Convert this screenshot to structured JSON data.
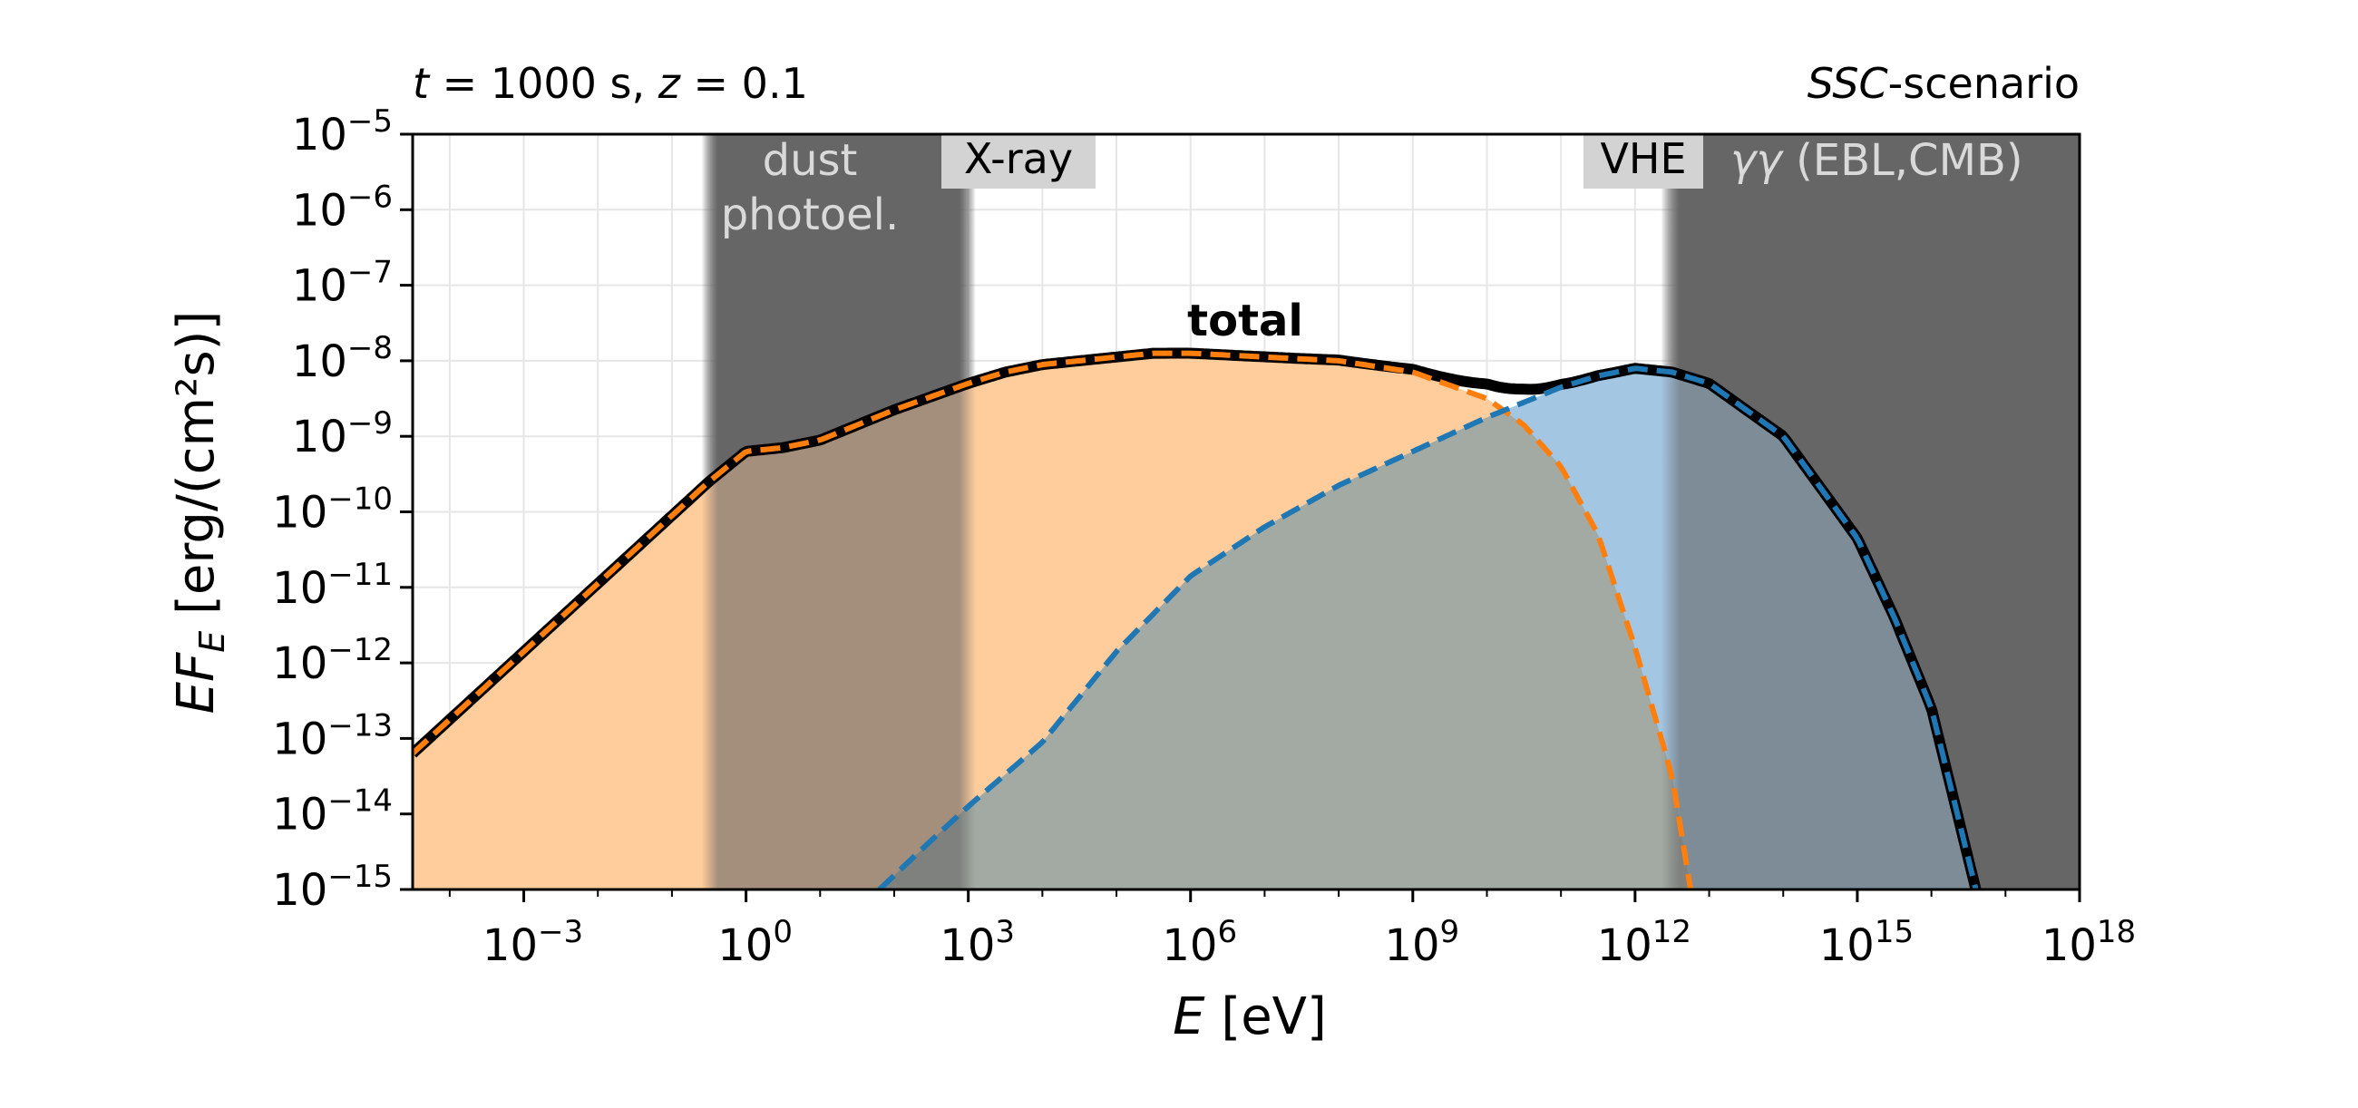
{
  "header": {
    "left_t": "t",
    "left_mid": " = 1000 s, ",
    "left_z": "z",
    "left_end": " = 0.1",
    "right_italic": "SSC",
    "right_rest": "-scenario"
  },
  "bands": {
    "dust": {
      "line1": "dust",
      "line2": "photoel."
    },
    "xray": {
      "label": "X-ray"
    },
    "vhe": {
      "label": "VHE"
    },
    "gg": {
      "prefix": "γγ",
      "rest": " (EBL,CMB)"
    }
  },
  "colors": {
    "orange_fill": "#ffcc9c",
    "orange_line": "#ff7f0e",
    "blue_fill": "#a3c6e3",
    "blue_line": "#1f77b4",
    "overlap_fill": "#a3aaa3",
    "band_dark": "#666666",
    "label_box": "#d3d3d3"
  },
  "chart_data": {
    "type": "area",
    "title": "",
    "xlabel": "E [eV]",
    "ylabel": "EF_E [erg/(cm²s)]",
    "xscale": "log",
    "yscale": "log",
    "xlim_log10": [
      -4.5,
      18
    ],
    "ylim_log10": [
      -15,
      -5
    ],
    "x_ticks": [
      {
        "base": "10",
        "exp": "−3",
        "log10": -3
      },
      {
        "base": "10",
        "exp": "0",
        "log10": 0
      },
      {
        "base": "10",
        "exp": "3",
        "log10": 3
      },
      {
        "base": "10",
        "exp": "6",
        "log10": 6
      },
      {
        "base": "10",
        "exp": "9",
        "log10": 9
      },
      {
        "base": "10",
        "exp": "12",
        "log10": 12
      },
      {
        "base": "10",
        "exp": "15",
        "log10": 15
      },
      {
        "base": "10",
        "exp": "18",
        "log10": 18
      }
    ],
    "y_ticks": [
      {
        "base": "10",
        "exp": "−5",
        "log10": -5
      },
      {
        "base": "10",
        "exp": "−6",
        "log10": -6
      },
      {
        "base": "10",
        "exp": "−7",
        "log10": -7
      },
      {
        "base": "10",
        "exp": "−8",
        "log10": -8
      },
      {
        "base": "10",
        "exp": "−9",
        "log10": -9
      },
      {
        "base": "10",
        "exp": "−10",
        "log10": -10
      },
      {
        "base": "10",
        "exp": "−11",
        "log10": -11
      },
      {
        "base": "10",
        "exp": "−12",
        "log10": -12
      },
      {
        "base": "10",
        "exp": "−13",
        "log10": -13
      },
      {
        "base": "10",
        "exp": "−14",
        "log10": -14
      },
      {
        "base": "10",
        "exp": "−15",
        "log10": -15
      }
    ],
    "grid": true,
    "regions": [
      {
        "name": "dust photoel.",
        "from_log10": -0.6,
        "to_log10": 3.1,
        "style": "dark"
      },
      {
        "name": "X-ray",
        "from_log10": 3.1,
        "to_log10": 12.35,
        "style": "clear"
      },
      {
        "name": "γγ (EBL,CMB)",
        "from_log10": 12.35,
        "to_log10": 18,
        "style": "dark"
      }
    ],
    "annotation": "total",
    "series": [
      {
        "id": "synchrotron",
        "log10_x": [
          -4.5,
          -3.5,
          -2.5,
          -1.5,
          -1,
          -0.5,
          0,
          0.5,
          1,
          2,
          3,
          3.5,
          4,
          5,
          5.5,
          6,
          7,
          8,
          9,
          10,
          10.5,
          11,
          11.5,
          12,
          12.5,
          12.75
        ],
        "log10_y": [
          -13.2,
          -12.3,
          -11.4,
          -10.5,
          -10.05,
          -9.6,
          -9.2,
          -9.15,
          -9.05,
          -8.65,
          -8.3,
          -8.15,
          -8.05,
          -7.95,
          -7.9,
          -7.9,
          -7.95,
          -8.0,
          -8.15,
          -8.5,
          -8.85,
          -9.4,
          -10.3,
          -11.8,
          -13.5,
          -15.0
        ]
      },
      {
        "id": "ssc",
        "log10_x": [
          1.8,
          2.5,
          3,
          4,
          5,
          6,
          7,
          8,
          9,
          10,
          11,
          11.5,
          12,
          12.5,
          13,
          14,
          15,
          15.5,
          16,
          16.3,
          16.6
        ],
        "log10_y": [
          -15.0,
          -14.35,
          -13.9,
          -13.05,
          -11.85,
          -10.85,
          -10.2,
          -9.65,
          -9.2,
          -8.75,
          -8.35,
          -8.2,
          -8.1,
          -8.15,
          -8.3,
          -9.0,
          -10.35,
          -11.4,
          -12.6,
          -13.8,
          -15.0
        ]
      }
    ]
  }
}
